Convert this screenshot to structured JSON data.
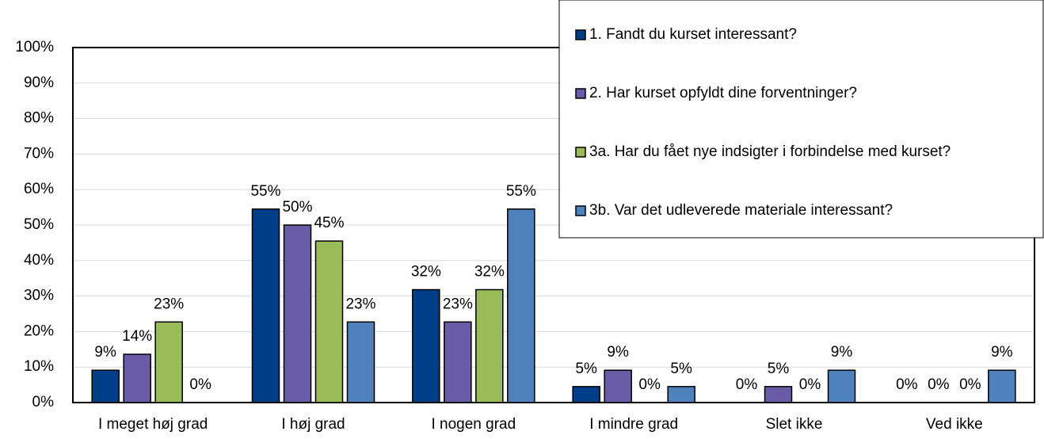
{
  "chart_data": {
    "type": "bar",
    "categories": [
      "I meget høj grad",
      "I høj grad",
      "I nogen grad",
      "I mindre grad",
      "Slet ikke",
      "Ved ikke"
    ],
    "series": [
      {
        "name": "1. Fandt du kurset interessant?",
        "color": "#003f87",
        "values": [
          9.1,
          54.5,
          31.8,
          4.5,
          0,
          0
        ],
        "value_labels": [
          "9%",
          "55%",
          "32%",
          "5%",
          "0%",
          "0%"
        ]
      },
      {
        "name": "2. Har kurset opfyldt dine forventninger?",
        "color": "#6a5ba6",
        "values": [
          13.6,
          50,
          22.7,
          9.1,
          4.5,
          0
        ],
        "value_labels": [
          "14%",
          "50%",
          "23%",
          "9%",
          "5%",
          "0%"
        ]
      },
      {
        "name": "3a. Har du fået nye indsigter i forbindelse med kurset?",
        "color": "#9bbb59",
        "values": [
          22.7,
          45.5,
          31.8,
          0,
          0,
          0
        ],
        "value_labels": [
          "23%",
          "45%",
          "32%",
          "0%",
          "0%",
          "0%"
        ]
      },
      {
        "name": "3b. Var det udleverede materiale interessant?",
        "color": "#4f81bd",
        "values": [
          0,
          22.7,
          54.5,
          4.5,
          9.1,
          9.1
        ],
        "value_labels": [
          "0%",
          "23%",
          "55%",
          "5%",
          "9%",
          "9%"
        ]
      }
    ],
    "ylim": [
      0,
      100
    ],
    "yticks": [
      {
        "value": 0,
        "label": "0%"
      },
      {
        "value": 10,
        "label": "10%"
      },
      {
        "value": 20,
        "label": "20%"
      },
      {
        "value": 30,
        "label": "30%"
      },
      {
        "value": 40,
        "label": "40%"
      },
      {
        "value": 50,
        "label": "50%"
      },
      {
        "value": 60,
        "label": "60%"
      },
      {
        "value": 70,
        "label": "70%"
      },
      {
        "value": 80,
        "label": "80%"
      },
      {
        "value": 90,
        "label": "90%"
      },
      {
        "value": 100,
        "label": "100%"
      }
    ],
    "grid": true,
    "legend": "upper right"
  }
}
